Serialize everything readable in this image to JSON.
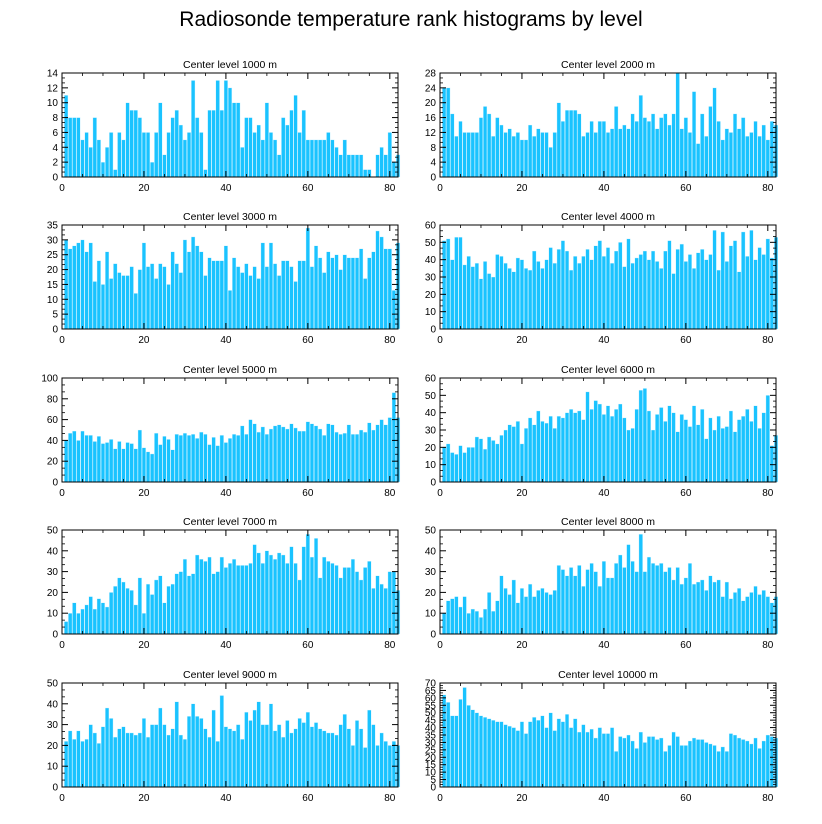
{
  "title": "Radiosonde temperature rank histograms by level",
  "colors": {
    "bar": "#1ac3ff",
    "bar_edge": "#e8f8ff",
    "axis": "#000000"
  },
  "chart_data": [
    {
      "type": "bar",
      "title": "Center level 1000 m",
      "ylim": [
        0,
        14
      ],
      "yticks": [
        0,
        2,
        4,
        6,
        8,
        10,
        12,
        14
      ],
      "xlim": [
        0,
        82
      ],
      "xticks": [
        0,
        20,
        40,
        60,
        80
      ],
      "x_start": 1,
      "values": [
        11,
        8,
        8,
        8,
        5,
        6,
        4,
        8,
        5,
        2,
        4,
        6,
        1,
        6,
        5,
        10,
        9,
        9,
        8,
        6,
        6,
        2,
        6,
        10,
        3,
        6,
        8,
        9,
        7,
        5,
        6,
        13,
        8,
        6,
        1,
        9,
        9,
        13,
        9,
        13,
        12,
        10,
        10,
        4,
        8,
        8,
        6,
        7,
        5,
        10,
        6,
        5,
        3,
        8,
        7,
        9,
        11,
        6,
        9,
        5,
        5,
        5,
        5,
        5,
        6,
        5,
        4,
        3,
        5,
        3,
        3,
        3,
        3,
        1,
        1,
        0,
        3,
        4,
        3,
        6,
        2,
        3
      ]
    },
    {
      "type": "bar",
      "title": "Center level 2000 m",
      "ylim": [
        0,
        28
      ],
      "yticks": [
        0,
        4,
        8,
        12,
        16,
        20,
        24,
        28
      ],
      "xlim": [
        0,
        82
      ],
      "xticks": [
        0,
        20,
        40,
        60,
        80
      ],
      "x_start": 1,
      "values": [
        24,
        24,
        17,
        11,
        15,
        12,
        12,
        12,
        12,
        16,
        19,
        17,
        11,
        16,
        14,
        12,
        13,
        11,
        12,
        10,
        10,
        14,
        11,
        13,
        12,
        12,
        8,
        12,
        20,
        15,
        18,
        18,
        18,
        17,
        11,
        12,
        15,
        12,
        15,
        15,
        12,
        13,
        19,
        13,
        14,
        13,
        17,
        15,
        22,
        16,
        15,
        17,
        13,
        16,
        17,
        14,
        17,
        28,
        13,
        16,
        12,
        23,
        9,
        17,
        11,
        19,
        24,
        15,
        10,
        13,
        12,
        17,
        13,
        16,
        11,
        12,
        15,
        11,
        14,
        10,
        15,
        14
      ]
    },
    {
      "type": "bar",
      "title": "Center level 3000 m",
      "ylim": [
        0,
        35
      ],
      "yticks": [
        0,
        5,
        10,
        15,
        20,
        25,
        30,
        35
      ],
      "xlim": [
        0,
        82
      ],
      "xticks": [
        0,
        20,
        40,
        60,
        80
      ],
      "x_start": 1,
      "values": [
        30,
        27,
        28,
        29,
        30,
        26,
        29,
        16,
        23,
        15,
        26,
        17,
        22,
        19,
        18,
        18,
        21,
        12,
        20,
        29,
        21,
        22,
        17,
        22,
        21,
        15,
        26,
        22,
        19,
        30,
        26,
        31,
        28,
        26,
        18,
        24,
        23,
        23,
        23,
        28,
        13,
        24,
        21,
        19,
        22,
        18,
        21,
        17,
        29,
        21,
        29,
        22,
        18,
        23,
        23,
        21,
        16,
        23,
        23,
        34,
        21,
        28,
        24,
        19,
        26,
        24,
        25,
        20,
        25,
        24,
        24,
        24,
        27,
        17,
        24,
        26,
        33,
        31,
        27,
        27,
        13,
        29
      ]
    },
    {
      "type": "bar",
      "title": "Center level 4000 m",
      "ylim": [
        0,
        60
      ],
      "yticks": [
        0,
        10,
        20,
        30,
        40,
        50,
        60
      ],
      "xlim": [
        0,
        82
      ],
      "xticks": [
        0,
        20,
        40,
        60,
        80
      ],
      "x_start": 1,
      "values": [
        51,
        52,
        40,
        53,
        53,
        37,
        42,
        36,
        38,
        29,
        39,
        32,
        30,
        43,
        42,
        38,
        35,
        33,
        41,
        40,
        35,
        34,
        45,
        39,
        35,
        40,
        47,
        38,
        46,
        51,
        45,
        34,
        42,
        38,
        42,
        46,
        40,
        48,
        51,
        42,
        47,
        38,
        45,
        50,
        36,
        52,
        38,
        41,
        43,
        45,
        40,
        45,
        39,
        35,
        45,
        51,
        32,
        46,
        49,
        39,
        43,
        35,
        44,
        46,
        40,
        43,
        57,
        34,
        56,
        39,
        48,
        51,
        33,
        56,
        42,
        57,
        40,
        47,
        43,
        52,
        41,
        53
      ]
    },
    {
      "type": "bar",
      "title": "Center level 5000 m",
      "ylim": [
        0,
        100
      ],
      "yticks": [
        0,
        20,
        40,
        60,
        80,
        100
      ],
      "xlim": [
        0,
        82
      ],
      "xticks": [
        0,
        20,
        40,
        60,
        80
      ],
      "x_start": 1,
      "values": [
        40,
        47,
        49,
        40,
        49,
        45,
        45,
        39,
        44,
        37,
        38,
        41,
        32,
        39,
        32,
        38,
        37,
        32,
        50,
        33,
        29,
        27,
        47,
        36,
        44,
        41,
        31,
        46,
        45,
        47,
        45,
        46,
        42,
        48,
        46,
        36,
        43,
        35,
        45,
        38,
        42,
        46,
        45,
        54,
        46,
        60,
        56,
        48,
        53,
        46,
        51,
        54,
        55,
        53,
        51,
        56,
        52,
        49,
        49,
        58,
        56,
        54,
        51,
        45,
        56,
        55,
        48,
        46,
        47,
        55,
        46,
        46,
        50,
        48,
        57,
        50,
        55,
        60,
        55,
        62,
        86,
        62
      ]
    },
    {
      "type": "bar",
      "title": "Center level 6000 m",
      "ylim": [
        0,
        60
      ],
      "yticks": [
        0,
        10,
        20,
        30,
        40,
        50,
        60
      ],
      "xlim": [
        0,
        82
      ],
      "xticks": [
        0,
        20,
        40,
        60,
        80
      ],
      "x_start": 1,
      "values": [
        20,
        22,
        17,
        16,
        21,
        17,
        20,
        20,
        26,
        25,
        19,
        26,
        24,
        22,
        27,
        30,
        33,
        32,
        35,
        22,
        31,
        37,
        33,
        41,
        35,
        34,
        38,
        31,
        38,
        37,
        40,
        42,
        40,
        41,
        36,
        52,
        42,
        47,
        45,
        39,
        44,
        38,
        42,
        45,
        37,
        30,
        31,
        42,
        53,
        54,
        41,
        30,
        39,
        43,
        35,
        44,
        40,
        29,
        39,
        36,
        32,
        44,
        33,
        42,
        25,
        37,
        30,
        38,
        31,
        32,
        41,
        29,
        36,
        38,
        42,
        35,
        44,
        31,
        40,
        50,
        21,
        27
      ]
    },
    {
      "type": "bar",
      "title": "Center level 7000 m",
      "ylim": [
        0,
        50
      ],
      "yticks": [
        0,
        10,
        20,
        30,
        40,
        50
      ],
      "xlim": [
        0,
        82
      ],
      "xticks": [
        0,
        20,
        40,
        60,
        80
      ],
      "x_start": 1,
      "values": [
        6,
        10,
        15,
        10,
        12,
        14,
        18,
        12,
        17,
        15,
        13,
        20,
        23,
        27,
        25,
        22,
        21,
        14,
        27,
        10,
        24,
        19,
        26,
        28,
        15,
        23,
        24,
        29,
        30,
        36,
        28,
        29,
        38,
        36,
        35,
        37,
        29,
        30,
        37,
        32,
        34,
        36,
        33,
        33,
        33,
        34,
        43,
        39,
        34,
        40,
        38,
        36,
        39,
        38,
        34,
        42,
        34,
        26,
        42,
        48,
        37,
        46,
        27,
        37,
        35,
        34,
        33,
        27,
        32,
        32,
        36,
        30,
        26,
        32,
        35,
        22,
        28,
        24,
        22,
        30,
        30,
        21
      ]
    },
    {
      "type": "bar",
      "title": "Center level 8000 m",
      "ylim": [
        0,
        50
      ],
      "yticks": [
        0,
        10,
        20,
        30,
        40,
        50
      ],
      "xlim": [
        0,
        82
      ],
      "xticks": [
        0,
        20,
        40,
        60,
        80
      ],
      "x_start": 1,
      "values": [
        10,
        16,
        17,
        18,
        13,
        18,
        10,
        12,
        11,
        8,
        12,
        20,
        11,
        16,
        28,
        22,
        19,
        26,
        15,
        22,
        18,
        24,
        18,
        21,
        22,
        20,
        19,
        21,
        33,
        31,
        28,
        32,
        28,
        33,
        23,
        31,
        34,
        30,
        23,
        35,
        27,
        27,
        34,
        38,
        32,
        43,
        35,
        30,
        48,
        30,
        37,
        34,
        33,
        34,
        30,
        32,
        26,
        32,
        24,
        27,
        34,
        24,
        25,
        26,
        21,
        28,
        25,
        26,
        18,
        25,
        17,
        20,
        22,
        16,
        18,
        20,
        23,
        19,
        21,
        18,
        15,
        18
      ]
    },
    {
      "type": "bar",
      "title": "Center level 9000 m",
      "ylim": [
        0,
        50
      ],
      "yticks": [
        0,
        10,
        20,
        30,
        40,
        50
      ],
      "xlim": [
        0,
        82
      ],
      "xticks": [
        0,
        20,
        40,
        60,
        80
      ],
      "x_start": 1,
      "values": [
        22,
        27,
        23,
        27,
        22,
        23,
        30,
        26,
        21,
        29,
        38,
        33,
        24,
        28,
        29,
        26,
        26,
        25,
        26,
        33,
        24,
        30,
        30,
        38,
        30,
        25,
        28,
        41,
        25,
        23,
        34,
        40,
        34,
        33,
        28,
        24,
        37,
        22,
        44,
        29,
        28,
        27,
        30,
        23,
        36,
        32,
        37,
        41,
        30,
        30,
        40,
        27,
        30,
        24,
        32,
        26,
        28,
        33,
        31,
        36,
        29,
        31,
        28,
        27,
        26,
        26,
        25,
        30,
        35,
        28,
        20,
        32,
        28,
        19,
        37,
        30,
        20,
        26,
        22,
        20,
        22,
        20
      ]
    },
    {
      "type": "bar",
      "title": "Center level 10000 m",
      "ylim": [
        0,
        70
      ],
      "yticks": [
        0,
        5,
        10,
        15,
        20,
        25,
        30,
        35,
        40,
        45,
        50,
        55,
        60,
        65,
        70
      ],
      "xlim": [
        0,
        82
      ],
      "xticks": [
        0,
        20,
        40,
        60,
        80
      ],
      "x_start": 1,
      "values": [
        62,
        57,
        48,
        48,
        59,
        67,
        55,
        52,
        50,
        48,
        47,
        46,
        45,
        44,
        44,
        42,
        41,
        40,
        38,
        44,
        36,
        44,
        47,
        45,
        48,
        40,
        50,
        38,
        46,
        44,
        49,
        40,
        46,
        37,
        42,
        37,
        39,
        33,
        40,
        36,
        36,
        40,
        24,
        34,
        33,
        35,
        31,
        26,
        37,
        30,
        34,
        34,
        32,
        33,
        24,
        28,
        37,
        34,
        28,
        28,
        31,
        33,
        32,
        32,
        30,
        29,
        28,
        24,
        27,
        24,
        36,
        35,
        33,
        32,
        31,
        29,
        33,
        26,
        31,
        35,
        34,
        33
      ]
    }
  ]
}
